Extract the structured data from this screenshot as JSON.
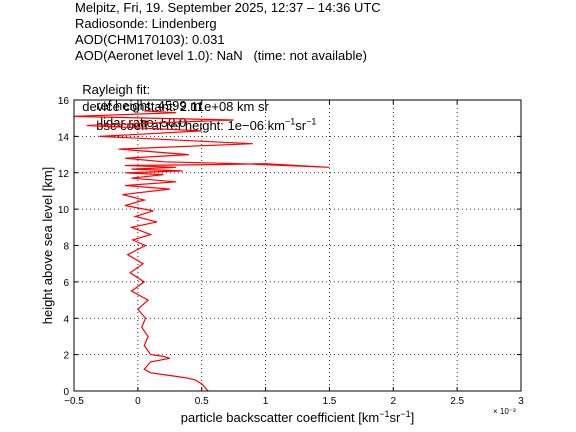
{
  "header": {
    "line1": "Melpitz, Fri, 19. September 2025, 12:37 – 14:36 UTC",
    "line2": "Radiosonde: Lindenberg",
    "line3": "AOD(CHM170103): 0.031",
    "line4": "AOD(Aeronet level 1.0): NaN   (time: not available)",
    "rayleigh_label": "Rayleigh fit:",
    "ref_height": "ref height: 4599 m",
    "bsc_prefix": "bsc coeff at ref height: 1e−06 km",
    "unit_exp1": "−1",
    "unit_sr": "sr",
    "unit_exp2": "−1",
    "device_constant": "device constant: 2.11e+08 km sr",
    "lidar_ratio": "lidar ratio: 50.0"
  },
  "chart_data": {
    "type": "line",
    "xlabel": "particle backscatter coefficient [km⁻¹sr⁻¹]",
    "xlabel_parts": [
      "particle backscatter coefficient [km",
      "−1",
      "sr",
      "−1",
      "]"
    ],
    "ylabel": "height above sea level [km]",
    "x_multiplier": "× 10⁻³",
    "xlim": [
      -0.5,
      3
    ],
    "ylim": [
      0,
      16
    ],
    "xticks": [
      -0.5,
      0,
      0.5,
      1,
      1.5,
      2,
      2.5,
      3
    ],
    "xtick_labels": [
      "−0.5",
      "0",
      "0.5",
      "1",
      "1.5",
      "2",
      "2.5",
      "3"
    ],
    "yticks": [
      0,
      2,
      4,
      6,
      8,
      10,
      12,
      14,
      16
    ],
    "ytick_labels": [
      "0",
      "2",
      "4",
      "6",
      "8",
      "10",
      "12",
      "14",
      "16"
    ],
    "grid": true,
    "series": [
      {
        "color": "#ff0000",
        "x": [
          0.55,
          0.5,
          0.45,
          0.4,
          0.3,
          0.2,
          0.1,
          0.05,
          0.1,
          0.25,
          0.2,
          0.1,
          0.05,
          0.08,
          0.03,
          0.06,
          0.0,
          0.08,
          -0.05,
          0.05,
          -0.06,
          0.04,
          -0.08,
          0.06,
          -0.04,
          0.1,
          -0.05,
          0.15,
          -0.02,
          0.12,
          -0.1,
          0.05,
          -0.12,
          0.25,
          -0.1,
          0.3,
          -0.05,
          0.2,
          -0.1,
          0.35,
          -0.05,
          0.3,
          -0.1,
          0.6,
          1.0,
          1.5,
          0.8,
          0.2,
          -0.1,
          0.4,
          -0.15,
          0.9,
          -0.3,
          0.5,
          -0.4,
          0.75,
          -0.5,
          0.3,
          0.05
        ],
        "y": [
          0.0,
          0.4,
          0.6,
          0.7,
          0.8,
          0.9,
          1.0,
          1.2,
          1.6,
          1.8,
          1.9,
          2.0,
          2.5,
          3.0,
          3.5,
          4.0,
          4.5,
          5.0,
          5.5,
          6.0,
          6.5,
          7.0,
          7.5,
          8.0,
          8.3,
          8.6,
          9.0,
          9.3,
          9.6,
          9.9,
          10.2,
          10.5,
          10.8,
          11.1,
          11.3,
          11.5,
          11.7,
          11.9,
          12.0,
          12.1,
          12.2,
          12.3,
          12.4,
          12.45,
          12.5,
          12.3,
          12.5,
          12.6,
          12.8,
          13.0,
          13.3,
          13.6,
          14.0,
          14.3,
          14.6,
          14.9,
          15.1,
          15.3,
          15.4
        ]
      }
    ]
  }
}
